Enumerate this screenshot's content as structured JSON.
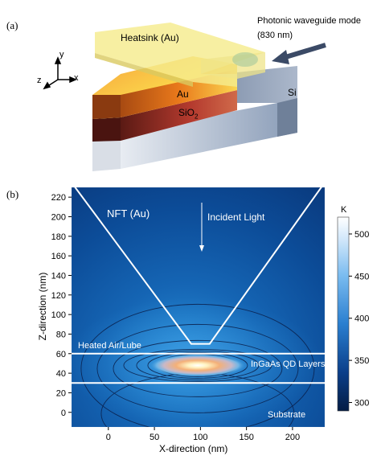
{
  "panel_a": {
    "label": "(a)",
    "mode_annotation_line1": "Photonic waveguide mode",
    "mode_annotation_line2": "(830 nm)",
    "heatsink": "Heatsink (Au)",
    "au": "Au",
    "sio2_base": "SiO",
    "sio2_sub": "2",
    "si": "Si",
    "axes": {
      "y": "y",
      "z": "z",
      "x": "x"
    },
    "colors": {
      "heatsink": "#f3e98a",
      "au_body": "#e07a1c",
      "sio2": "#b8343e",
      "si": "#8a9bb3"
    }
  },
  "panel_b": {
    "label": "(b)",
    "nft_label": "NFT (Au)",
    "incident_label": "Incident Light",
    "heated_label": "Heated Air/Lube",
    "qd_label": "InGaAs QD Layers",
    "substrate_label": "Substrate",
    "colorbar_unit": "K"
  },
  "chart_data": {
    "type": "heatmap",
    "title": "",
    "xlabel": "X-direction (nm)",
    "ylabel": "Z-direction (nm)",
    "xlim": [
      -40,
      235
    ],
    "ylim": [
      -15,
      230
    ],
    "xticks": [
      0,
      50,
      100,
      150,
      200
    ],
    "yticks": [
      0,
      20,
      40,
      60,
      80,
      100,
      120,
      140,
      160,
      180,
      200,
      220
    ],
    "colorbar": {
      "min": 290,
      "max": 520,
      "ticks": [
        300,
        350,
        400,
        450,
        500
      ],
      "unit": "K"
    },
    "nft_outline": {
      "x": [
        -40,
        90,
        110,
        235
      ],
      "z": [
        235,
        70,
        70,
        235
      ]
    },
    "layer_boundaries_z": [
      60,
      30
    ],
    "hotspot": {
      "x": 97,
      "z": 48,
      "max_K": 520
    }
  }
}
